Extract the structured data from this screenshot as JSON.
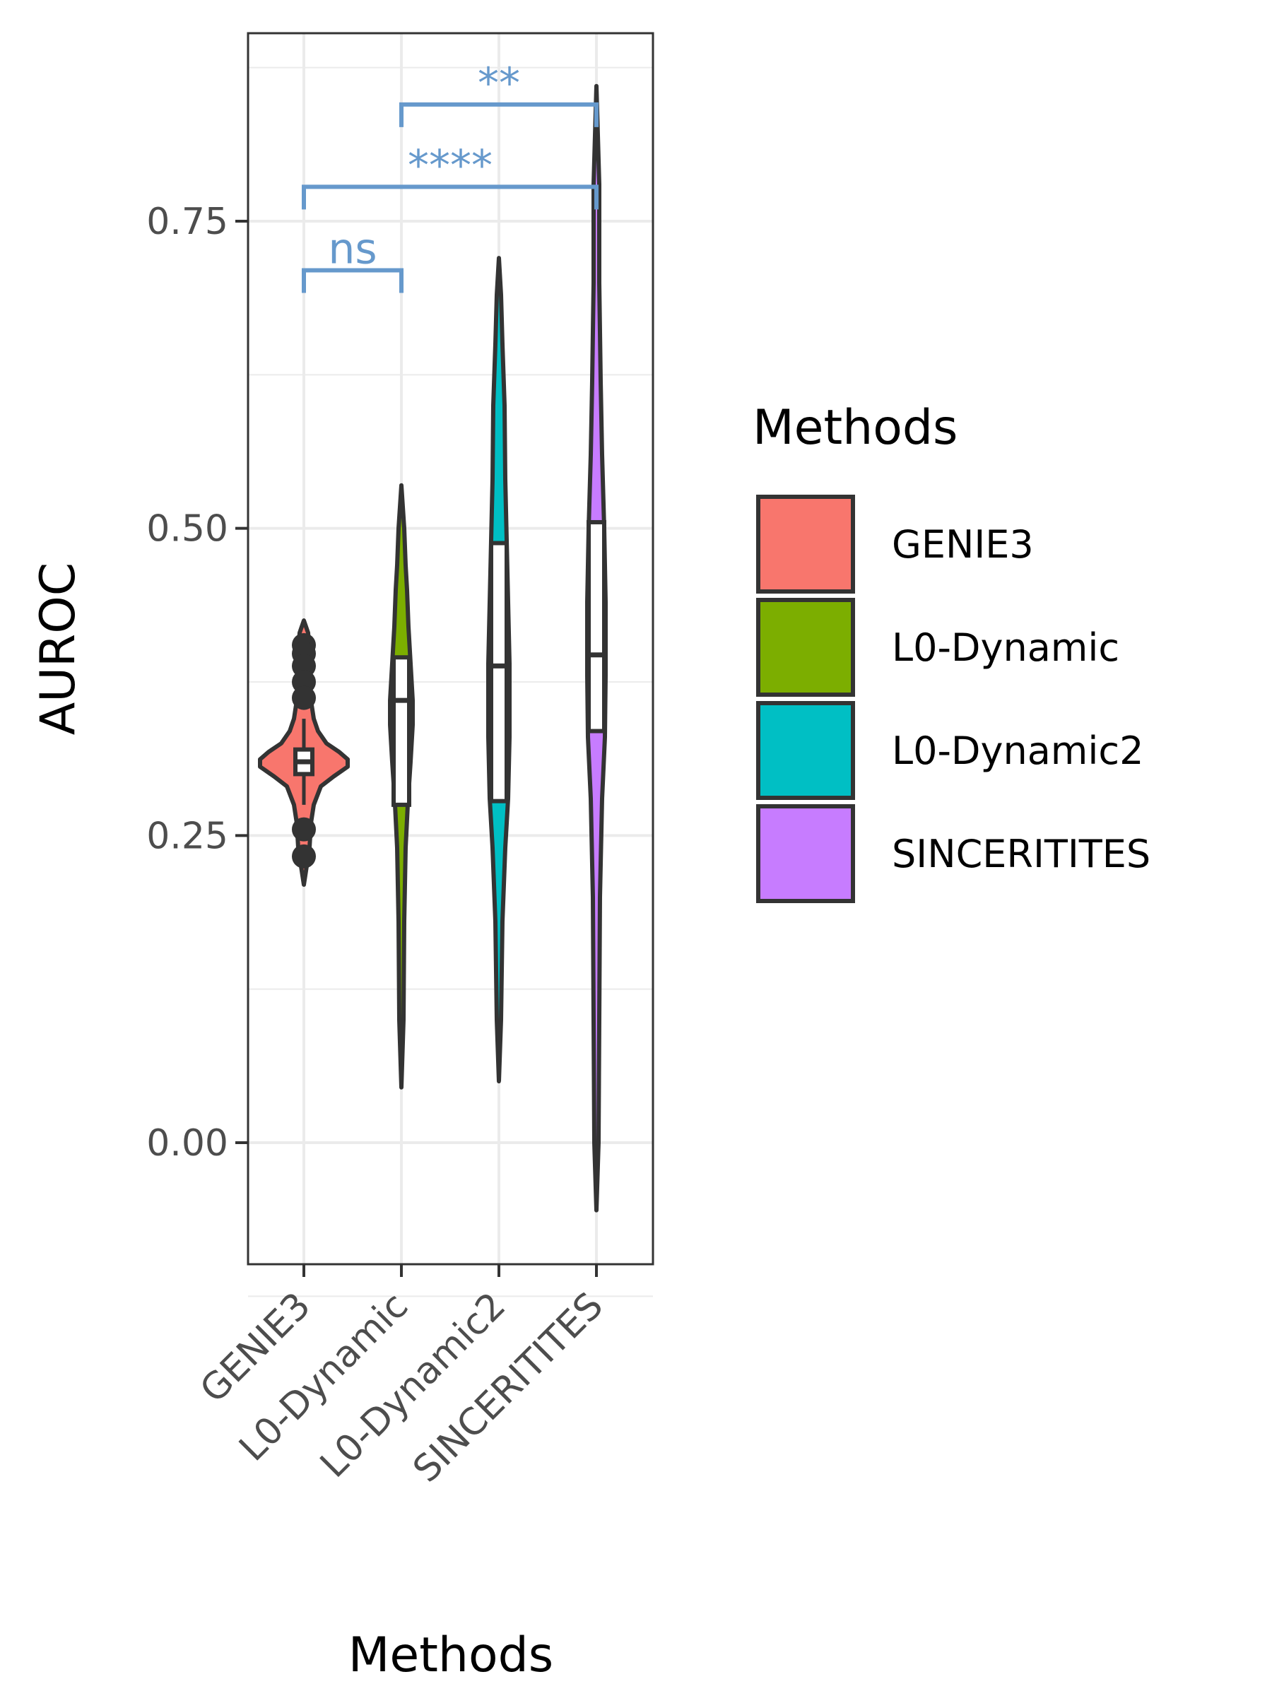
{
  "chart_data": {
    "type": "violin",
    "xlabel": "Methods",
    "ylabel": "AUROC",
    "ylim": [
      -0.1,
      0.9
    ],
    "yticks": [
      "0.00",
      "0.25",
      "0.50",
      "0.75"
    ],
    "ytick_values": [
      0.0,
      0.25,
      0.5,
      0.75
    ],
    "categories": [
      "GENIE3",
      "L0-Dynamic",
      "L0-Dynamic2",
      "SINCERITITES"
    ],
    "grid": true,
    "legend": {
      "title": "Methods",
      "position": "right",
      "entries": [
        {
          "label": "GENIE3",
          "color": "#f8766d"
        },
        {
          "label": "L0-Dynamic",
          "color": "#7cae00"
        },
        {
          "label": "L0-Dynamic2",
          "color": "#00bfc4"
        },
        {
          "label": "SINCERITITES",
          "color": "#c77cff"
        }
      ]
    },
    "series": [
      {
        "category": "GENIE3",
        "color": "#f8766d",
        "violin_min": 0.21,
        "violin_max": 0.425,
        "q1": 0.3,
        "median": 0.31,
        "q3": 0.32,
        "whisker_low": 0.275,
        "whisker_high": 0.345,
        "outliers": [
          0.405,
          0.398,
          0.388,
          0.375,
          0.362,
          0.255,
          0.233
        ]
      },
      {
        "category": "L0-Dynamic",
        "color": "#7cae00",
        "violin_min": 0.045,
        "violin_max": 0.535,
        "q1": 0.275,
        "median": 0.36,
        "q3": 0.395
      },
      {
        "category": "L0-Dynamic2",
        "color": "#00bfc4",
        "violin_min": 0.05,
        "violin_max": 0.72,
        "q1": 0.278,
        "median": 0.388,
        "q3": 0.488
      },
      {
        "category": "SINCERITITES",
        "color": "#c77cff",
        "violin_min": -0.055,
        "violin_max": 0.86,
        "q1": 0.335,
        "median": 0.397,
        "q3": 0.505
      }
    ],
    "significance": [
      {
        "from": "GENIE3",
        "to": "L0-Dynamic",
        "label": "ns",
        "y": 0.71
      },
      {
        "from": "GENIE3",
        "to": "SINCERITITES",
        "label": "****",
        "y": 0.778
      },
      {
        "from": "L0-Dynamic",
        "to": "SINCERITITES",
        "label": "**",
        "y": 0.845
      }
    ],
    "annotation_color": "#6699cc"
  }
}
